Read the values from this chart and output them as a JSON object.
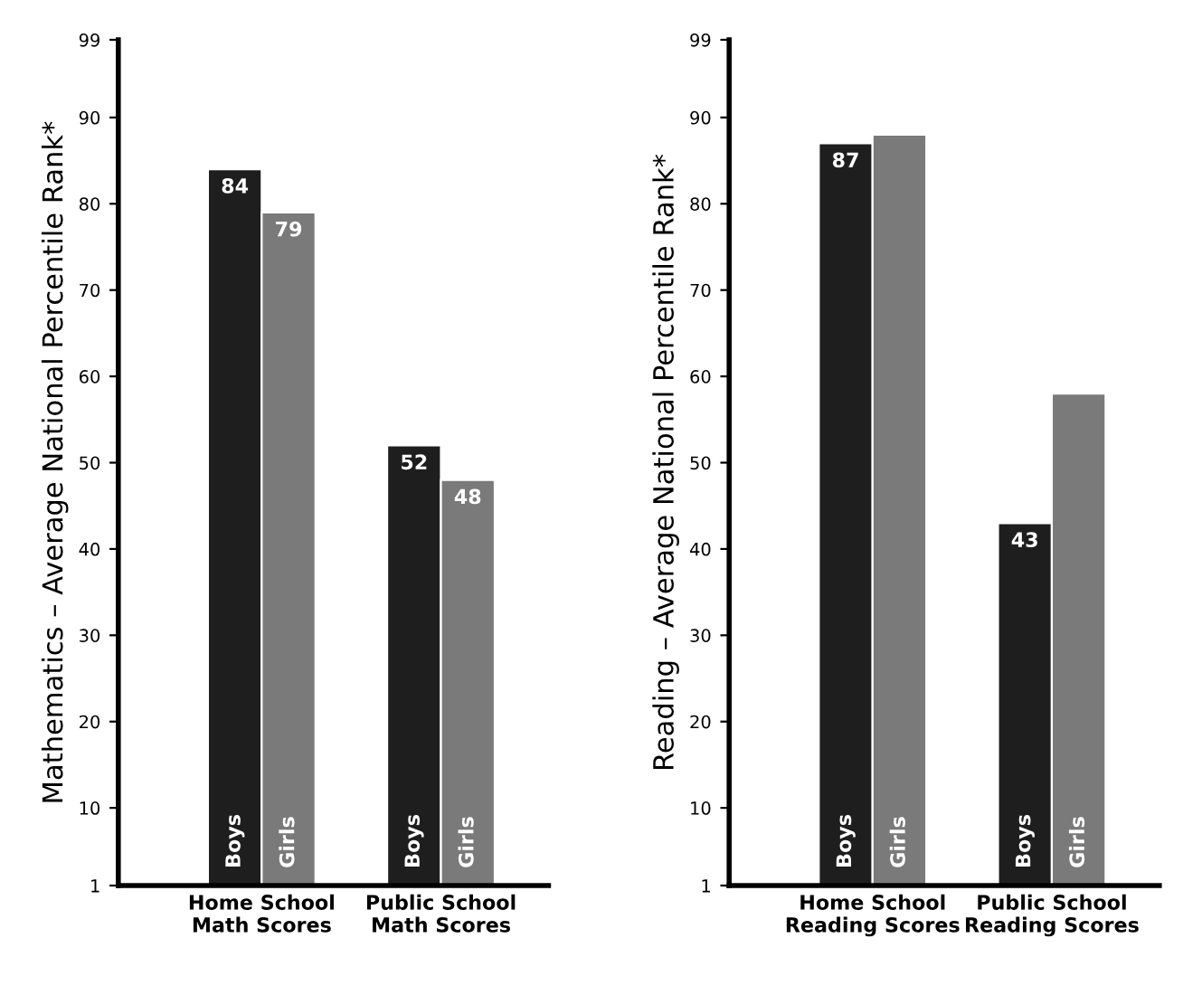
{
  "chart_data": [
    {
      "type": "bar",
      "ylabel": "Mathematics – Average National Percentile Rank*",
      "categories": [
        "Home School\nMath Scores",
        "Public School\nMath Scores"
      ],
      "series": [
        {
          "name": "Boys",
          "color": "#1e1e1e",
          "values": [
            84,
            52
          ],
          "value_labels": [
            "84",
            "52"
          ]
        },
        {
          "name": "Girls",
          "color": "#7a7a7a",
          "values": [
            79,
            48
          ],
          "value_labels": [
            "79",
            "48"
          ]
        }
      ],
      "ylim": [
        1,
        99
      ],
      "yticks": [
        1,
        10,
        20,
        30,
        40,
        50,
        60,
        70,
        80,
        90,
        99
      ],
      "grid": false,
      "legend": false
    },
    {
      "type": "bar",
      "ylabel": "Reading – Average National Percentile Rank*",
      "categories": [
        "Home School\nReading Scores",
        "Public School\nReading Scores"
      ],
      "series": [
        {
          "name": "Boys",
          "color": "#1e1e1e",
          "values": [
            87,
            43
          ],
          "value_labels": [
            "87",
            "43"
          ]
        },
        {
          "name": "Girls",
          "color": "#7a7a7a",
          "values": [
            88,
            58
          ],
          "value_labels": [
            null,
            null
          ]
        }
      ],
      "ylim": [
        1,
        99
      ],
      "yticks": [
        1,
        10,
        20,
        30,
        40,
        50,
        60,
        70,
        80,
        90,
        99
      ],
      "grid": false,
      "legend": false
    }
  ]
}
